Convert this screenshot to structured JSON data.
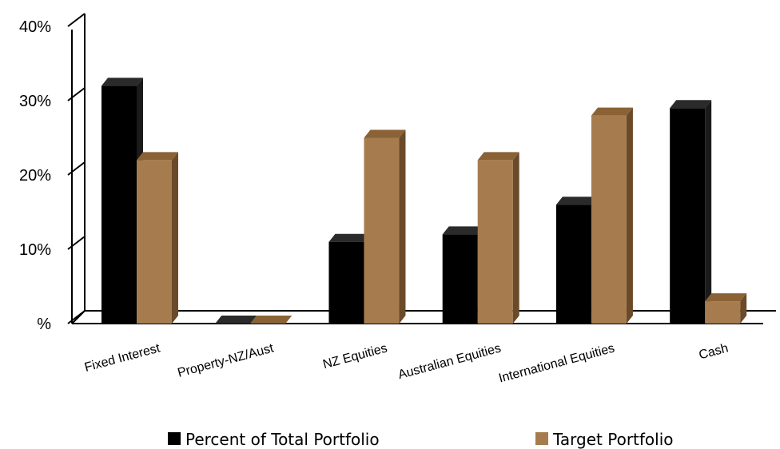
{
  "chart_data": {
    "type": "bar",
    "title": "",
    "xlabel": "",
    "ylabel": "",
    "ylim": [
      0,
      40
    ],
    "y_ticks": [
      {
        "value": 0,
        "label": "%"
      },
      {
        "value": 10,
        "label": "10%"
      },
      {
        "value": 20,
        "label": "20%"
      },
      {
        "value": 30,
        "label": "30%"
      },
      {
        "value": 40,
        "label": "40%"
      }
    ],
    "categories": [
      "Fixed Interest",
      "Property-NZ/Aust",
      "NZ Equities",
      "Australian Equities",
      "International Equities",
      "Cash"
    ],
    "series": [
      {
        "name": "Percent of Total Portfolio",
        "values": [
          32,
          0,
          11,
          12,
          16,
          29
        ],
        "color": "#000000",
        "side_color": "#1a1a1a",
        "top_color": "#2a2a2a"
      },
      {
        "name": "Target Portfolio",
        "values": [
          22,
          0,
          25,
          22,
          28,
          3
        ],
        "color": "#a67c4e",
        "side_color": "#6b4a2a",
        "top_color": "#8a6236"
      }
    ],
    "grid": false,
    "style": "3d",
    "legend_position": "bottom"
  }
}
